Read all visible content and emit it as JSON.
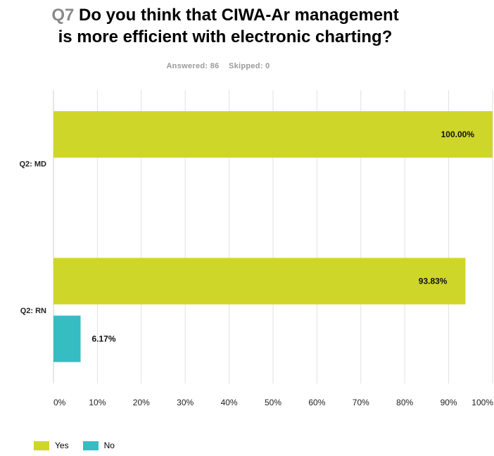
{
  "header": {
    "question_number": "Q7",
    "question_line1": "Do you think that CIWA-Ar management",
    "question_line2": "is more efficient with electronic charting?"
  },
  "summary": {
    "answered": "Answered: 86",
    "skipped": "Skipped: 0"
  },
  "colors": {
    "yes": "#cfd62a",
    "no": "#35bdc2",
    "grid": "#e2e2e2",
    "axis": "#cfcfcf"
  },
  "chart_data": {
    "type": "bar",
    "orientation": "horizontal",
    "categories": [
      "Q2: MD",
      "Q2: RN"
    ],
    "series": [
      {
        "name": "Yes",
        "values": [
          100.0,
          93.83
        ],
        "labels": [
          "100.00%",
          "93.83%"
        ]
      },
      {
        "name": "No",
        "values": [
          0,
          6.17
        ],
        "labels": [
          "",
          "6.17%"
        ]
      }
    ],
    "x_ticks": [
      "0%",
      "10%",
      "20%",
      "30%",
      "40%",
      "50%",
      "60%",
      "70%",
      "80%",
      "90%",
      "100%"
    ],
    "xlim": [
      0,
      100
    ],
    "grid": true,
    "legend_position": "bottom-left"
  }
}
